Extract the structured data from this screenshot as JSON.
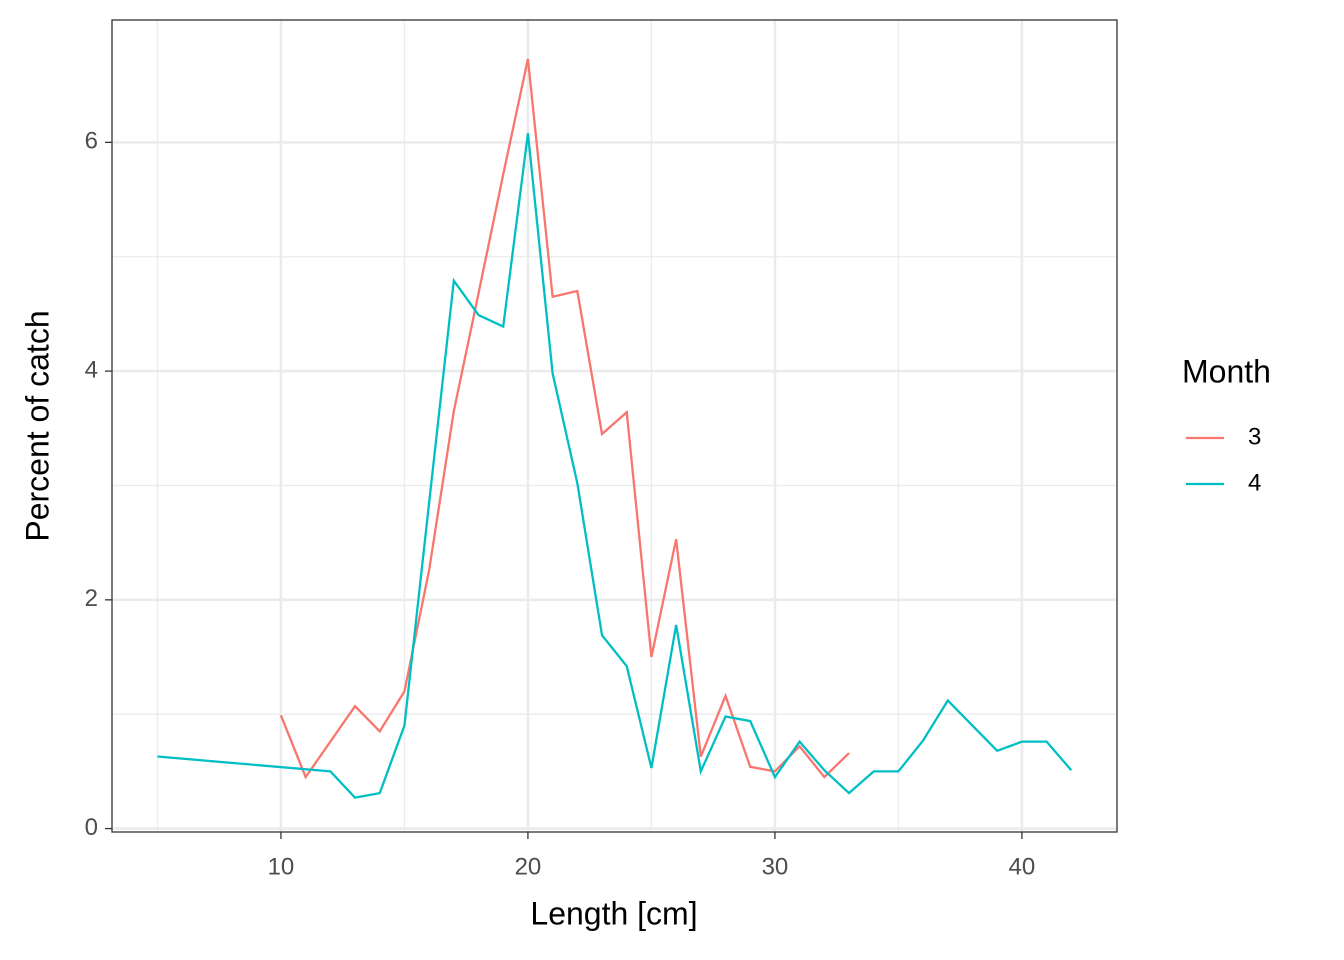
{
  "chart_data": {
    "type": "line",
    "xlabel": "Length [cm]",
    "ylabel": "Percent of catch",
    "legend_title": "Month",
    "legend_position": "right",
    "xlim": [
      3.16,
      43.85
    ],
    "xticks": [
      10,
      20,
      30,
      40
    ],
    "minor_xticks": [
      5,
      15,
      25,
      35
    ],
    "ylim": [
      -0.03,
      7.07
    ],
    "yticks": [
      0,
      2,
      4,
      6
    ],
    "minor_yticks": [
      1,
      3,
      5
    ],
    "grid": true,
    "series": [
      {
        "name": "3",
        "color": "#f8766d",
        "x": [
          10,
          11,
          12,
          13,
          14,
          15,
          16,
          17,
          18,
          19,
          20,
          21,
          22,
          23,
          24,
          25,
          26,
          27,
          28,
          29,
          30,
          31,
          32,
          33
        ],
        "values": [
          0.99,
          0.45,
          0.76,
          1.07,
          0.85,
          1.2,
          2.26,
          3.65,
          4.68,
          5.72,
          6.73,
          4.65,
          4.7,
          3.45,
          3.64,
          1.5,
          2.53,
          0.63,
          1.16,
          0.54,
          0.5,
          0.72,
          0.45,
          0.66
        ]
      },
      {
        "name": "4",
        "color": "#00bfc4",
        "x": [
          5,
          12,
          13,
          14,
          15,
          16,
          17,
          18,
          19,
          20,
          21,
          22,
          23,
          24,
          25,
          26,
          27,
          28,
          29,
          30,
          31,
          32,
          33,
          34,
          35,
          36,
          37,
          38,
          39,
          40,
          41,
          42
        ],
        "values": [
          0.63,
          0.5,
          0.27,
          0.31,
          0.9,
          2.85,
          4.79,
          4.49,
          4.39,
          6.08,
          3.98,
          3.02,
          1.69,
          1.42,
          0.53,
          1.78,
          0.5,
          0.98,
          0.94,
          0.45,
          0.76,
          0.51,
          0.31,
          0.5,
          0.5,
          0.77,
          1.12,
          0.9,
          0.68,
          0.76,
          0.76,
          0.51
        ]
      }
    ]
  }
}
